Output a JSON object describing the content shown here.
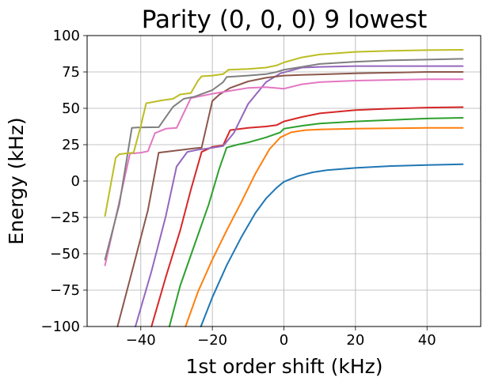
{
  "chart_data": {
    "type": "line",
    "title": "Parity (0, 0, 0) 9 lowest",
    "xlabel": "1st order shift (kHz)",
    "ylabel": "Energy (kHz)",
    "xlim": [
      -55,
      55
    ],
    "ylim": [
      -100,
      100
    ],
    "xticks": [
      -40,
      -20,
      0,
      20,
      40
    ],
    "xtick_labels": [
      "−40",
      "−20",
      "0",
      "20",
      "40"
    ],
    "yticks": [
      -100,
      -75,
      -50,
      -25,
      0,
      25,
      50,
      75,
      100
    ],
    "ytick_labels": [
      "−100",
      "−75",
      "−50",
      "−25",
      "0",
      "25",
      "50",
      "75",
      "100"
    ],
    "grid": true,
    "legend": "none",
    "series": [
      {
        "color": "#1f77b4",
        "x": [
          -23.2,
          -20,
          -16,
          -12,
          -8,
          -5,
          -2,
          0,
          4,
          8,
          12,
          20,
          30,
          40,
          50
        ],
        "y": [
          -100,
          -80,
          -58,
          -39,
          -22,
          -12,
          -4.5,
          -0.5,
          3.5,
          6,
          7.5,
          9,
          10.3,
          11,
          11.5
        ]
      },
      {
        "color": "#ff7f0e",
        "x": [
          -27.5,
          -24,
          -20,
          -16,
          -12,
          -8,
          -4,
          -1,
          2,
          6,
          10,
          20,
          30,
          40,
          50
        ],
        "y": [
          -100,
          -76,
          -54,
          -34,
          -15,
          5,
          22,
          30,
          33.5,
          35,
          35.5,
          36,
          36.3,
          36.5,
          36.6
        ]
      },
      {
        "color": "#2ca02c",
        "x": [
          -32,
          -29,
          -25,
          -21,
          -18,
          -16,
          -13,
          -10,
          -5,
          -1,
          0,
          5,
          10,
          20,
          30,
          40,
          50
        ],
        "y": [
          -100,
          -72,
          -44,
          -16,
          9,
          23,
          25,
          26.5,
          30,
          33.5,
          36,
          38,
          39.5,
          41,
          42,
          43,
          43.5
        ]
      },
      {
        "color": "#d62728",
        "x": [
          -37,
          -33,
          -29,
          -26,
          -23,
          -20,
          -17,
          -15,
          -10,
          -5,
          -2,
          0,
          5,
          10,
          20,
          30,
          40,
          50
        ],
        "y": [
          -100,
          -66,
          -34,
          -6,
          20,
          23.5,
          24.5,
          35,
          36.5,
          37.5,
          38.5,
          41,
          44,
          46.5,
          48.8,
          49.8,
          50.5,
          50.8
        ]
      },
      {
        "color": "#9467bd",
        "x": [
          -41.5,
          -37,
          -33,
          -30,
          -27,
          -24,
          -21,
          -17,
          -14,
          -10,
          -5,
          -1,
          2,
          5,
          10,
          20,
          30,
          40,
          50
        ],
        "y": [
          -100,
          -62,
          -24,
          10,
          20,
          21.5,
          22.5,
          24,
          33,
          53,
          68,
          74,
          76,
          78,
          78.5,
          79,
          79,
          79,
          79
        ]
      },
      {
        "color": "#8c564b",
        "x": [
          -46.5,
          -42,
          -38,
          -35,
          -30,
          -25,
          -23,
          -20,
          -18,
          -15,
          -10,
          -5,
          0,
          5,
          10,
          20,
          30,
          40,
          50
        ],
        "y": [
          -100,
          -58,
          -20,
          19.5,
          21,
          22.5,
          23,
          55,
          59.5,
          64,
          68.5,
          71,
          72.5,
          73,
          73.3,
          74,
          74.5,
          75,
          75
        ]
      },
      {
        "color": "#e377c2",
        "x": [
          -50,
          -46,
          -43,
          -42,
          -40,
          -38,
          -36,
          -33,
          -30,
          -26,
          -20,
          -15,
          -10,
          -5,
          0,
          5,
          10,
          20,
          30,
          40,
          50
        ],
        "y": [
          -58,
          -14,
          19,
          19,
          19.5,
          20.5,
          33,
          36,
          36.5,
          57,
          60,
          62,
          64,
          64.5,
          63.5,
          66.5,
          68,
          69,
          69.5,
          70,
          70
        ]
      },
      {
        "color": "#7f7f7f",
        "x": [
          -50,
          -46,
          -42.5,
          -41,
          -35,
          -31,
          -28,
          -25,
          -20,
          -17,
          -16,
          -10,
          -5,
          -2,
          0,
          5,
          10,
          20,
          30,
          40,
          50
        ],
        "y": [
          -54,
          -16,
          36.5,
          36.8,
          37,
          51,
          56.5,
          58,
          62.5,
          68,
          71.5,
          72.5,
          73.5,
          75,
          76.5,
          78.5,
          80.5,
          82,
          83,
          83.5,
          84
        ]
      },
      {
        "color": "#bcbd22",
        "x": [
          -50,
          -47,
          -46,
          -44,
          -42,
          -40,
          -38.5,
          -34,
          -31,
          -29,
          -26,
          -24,
          -23,
          -20,
          -17,
          -15.5,
          -10,
          -5,
          -2,
          0,
          5,
          10,
          20,
          30,
          40,
          50
        ],
        "y": [
          -24,
          16,
          18.5,
          19,
          19.5,
          38,
          53.5,
          55.5,
          56.5,
          59.5,
          60.5,
          69,
          72,
          72.5,
          73.5,
          76.5,
          77,
          78,
          79.5,
          81.5,
          85,
          87,
          88.8,
          89.5,
          90,
          90.2
        ]
      }
    ]
  }
}
